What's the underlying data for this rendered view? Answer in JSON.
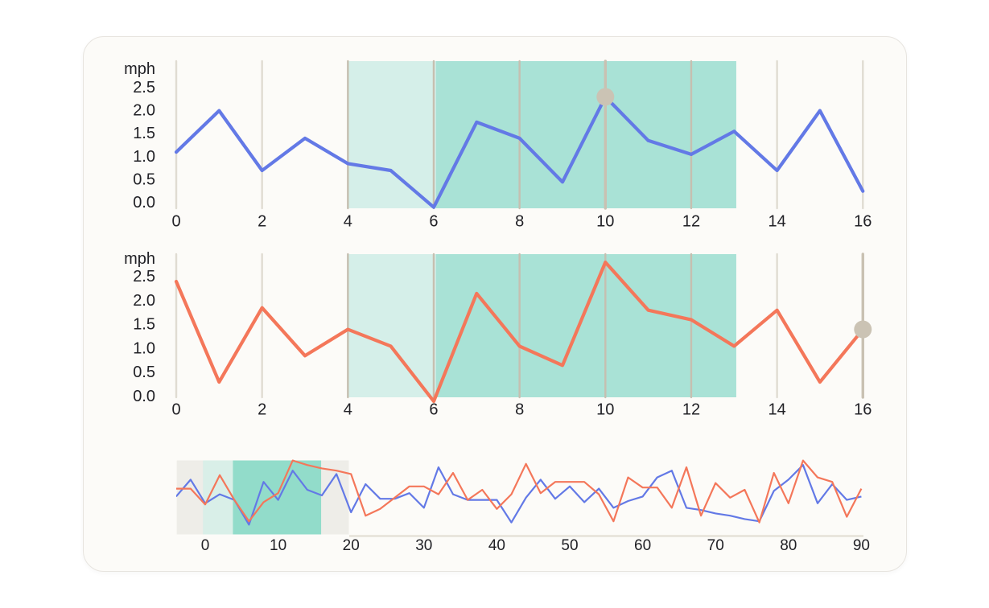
{
  "colors": {
    "page_bg": "#ffffff",
    "card_bg": "#fcfbf8",
    "card_border": "#e7e4df",
    "blue": "#6379e6",
    "orange": "#f4775a",
    "region_light": "#d5efe9",
    "region_dark": "#a9e2d6",
    "grid": "#e0dcd2",
    "grid_on_region": "#c6bfb0",
    "cursor_line": "#c9c1b2",
    "cursor_dot": "#cbc3b4",
    "brush_window": "#eeede8",
    "brush_region_light": "#d9efe8",
    "brush_region_dark": "#92dcca",
    "brush_axis": "#e5e1d8",
    "label": "#212126"
  },
  "chart_data": [
    {
      "id": "speed-top",
      "type": "line",
      "title": "",
      "ylabel": "mph",
      "xlabel": "",
      "x": [
        0,
        1,
        2,
        3,
        4,
        5,
        6,
        7,
        8,
        9,
        10,
        11,
        12,
        13,
        14,
        15,
        16
      ],
      "series": [
        {
          "name": "blue",
          "color": "#6379e6",
          "values": [
            1.1,
            2.0,
            0.7,
            1.4,
            0.85,
            0.7,
            -0.1,
            1.75,
            1.4,
            0.45,
            2.3,
            1.35,
            1.05,
            1.55,
            0.7,
            2.0,
            0.25
          ]
        }
      ],
      "x_ticks": [
        0,
        2,
        4,
        6,
        8,
        10,
        12,
        14,
        16
      ],
      "y_ticks": [
        "2.5",
        "2.0",
        "1.5",
        "1.0",
        "0.5",
        "0.0"
      ],
      "xlim": [
        0,
        16
      ],
      "ylim": [
        -0.2,
        3.15
      ],
      "grid": "vertical",
      "legend": "none",
      "regions": [
        {
          "from": 4,
          "to": 6.05,
          "color": "#d5efe9"
        },
        {
          "from": 6.05,
          "to": 13.05,
          "color": "#a9e2d6"
        }
      ],
      "cursor": {
        "x": 10,
        "y": 2.3
      }
    },
    {
      "id": "speed-bottom",
      "type": "line",
      "title": "",
      "ylabel": "mph",
      "xlabel": "",
      "x": [
        0,
        1,
        2,
        3,
        4,
        5,
        6,
        7,
        8,
        9,
        10,
        11,
        12,
        13,
        14,
        15,
        16
      ],
      "series": [
        {
          "name": "orange",
          "color": "#f4775a",
          "values": [
            2.4,
            0.3,
            1.85,
            0.85,
            1.4,
            1.05,
            -0.1,
            2.15,
            1.05,
            0.65,
            2.8,
            1.8,
            1.6,
            1.05,
            1.8,
            0.3,
            1.4
          ]
        }
      ],
      "x_ticks": [
        0,
        2,
        4,
        6,
        8,
        10,
        12,
        14,
        16
      ],
      "y_ticks": [
        "2.5",
        "2.0",
        "1.5",
        "1.0",
        "0.5",
        "0.0"
      ],
      "xlim": [
        0,
        16
      ],
      "ylim": [
        -0.2,
        3.15
      ],
      "grid": "vertical",
      "legend": "none",
      "regions": [
        {
          "from": 4,
          "to": 6.05,
          "color": "#d5efe9"
        },
        {
          "from": 6.05,
          "to": 13.05,
          "color": "#a9e2d6"
        }
      ],
      "cursor": {
        "x": 16,
        "y": 1.4
      }
    },
    {
      "id": "overview-brush",
      "type": "line",
      "title": "",
      "ylabel": "",
      "xlabel": "",
      "x_start": -4,
      "x_step": 2,
      "series": [
        {
          "name": "blue",
          "color": "#6379e6",
          "values": [
            1.45,
            2.2,
            1.15,
            1.55,
            1.3,
            0.2,
            2.1,
            1.3,
            2.6,
            1.75,
            1.5,
            2.45,
            0.75,
            2.0,
            1.35,
            1.35,
            1.6,
            0.95,
            2.75,
            1.55,
            1.3,
            1.3,
            1.3,
            0.3,
            1.4,
            2.2,
            1.35,
            1.9,
            1.2,
            1.8,
            0.95,
            1.25,
            1.45,
            2.3,
            2.6,
            0.95,
            0.85,
            0.7,
            0.6,
            0.45,
            0.35,
            1.7,
            2.2,
            2.85,
            1.15,
            2.0,
            1.3,
            1.45
          ]
        },
        {
          "name": "orange",
          "color": "#f4775a",
          "values": [
            1.8,
            1.8,
            1.1,
            2.4,
            1.3,
            0.35,
            1.2,
            1.6,
            3.05,
            2.85,
            2.7,
            2.6,
            2.45,
            0.6,
            0.9,
            1.4,
            1.9,
            1.9,
            1.55,
            2.5,
            1.3,
            1.75,
            0.9,
            1.55,
            2.9,
            1.6,
            2.1,
            2.1,
            2.1,
            1.55,
            0.35,
            2.3,
            1.85,
            1.85,
            0.95,
            2.75,
            0.6,
            2.05,
            1.4,
            1.75,
            0.3,
            2.5,
            1.15,
            3.05,
            2.3,
            2.1,
            0.55,
            1.8
          ]
        }
      ],
      "x_ticks": [
        0,
        10,
        20,
        30,
        40,
        50,
        60,
        70,
        80,
        90
      ],
      "y_ticks": [],
      "xlim": [
        -4,
        90.5
      ],
      "ylim": [
        -0.3,
        3.1
      ],
      "grid": "off",
      "legend": "none",
      "window": {
        "from": -3.9,
        "to": 19.7
      },
      "regions": [
        {
          "from": -0.3,
          "to": 3.8,
          "color": "#d9efe8"
        },
        {
          "from": 3.8,
          "to": 15.9,
          "color": "#92dcca"
        }
      ]
    }
  ]
}
